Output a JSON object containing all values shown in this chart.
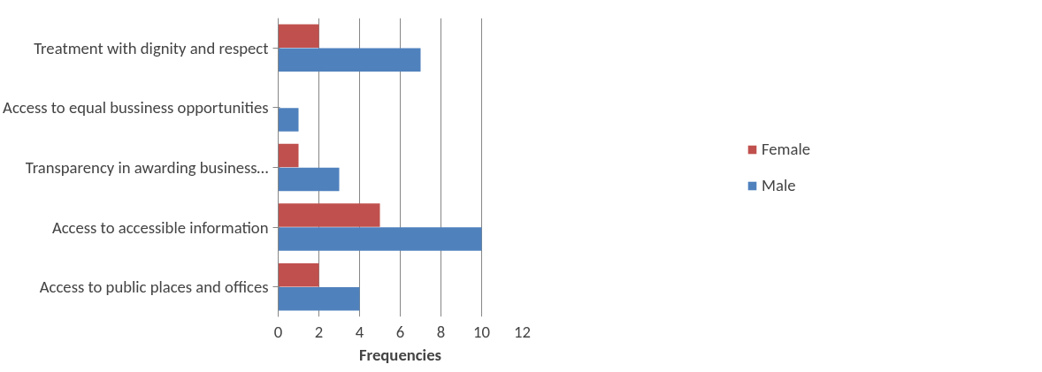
{
  "chart_data": {
    "type": "bar",
    "orientation": "horizontal",
    "xlabel": "Frequencies",
    "categories": [
      "Treatment with dignity and respect",
      "Access to equal bussiness opportunities",
      "Transparency in awarding business…",
      "Access to accessible information",
      "Access to public places and offices"
    ],
    "series": [
      {
        "name": "Female",
        "color": "#c0504d",
        "values": [
          2,
          0,
          1,
          5,
          2
        ]
      },
      {
        "name": "Male",
        "color": "#4f81bd",
        "values": [
          7,
          1,
          3,
          10,
          4
        ]
      }
    ],
    "xlim": [
      0,
      12
    ],
    "xticks": [
      0,
      2,
      4,
      6,
      8,
      10,
      12
    ],
    "grid": "x",
    "legend": "right"
  }
}
